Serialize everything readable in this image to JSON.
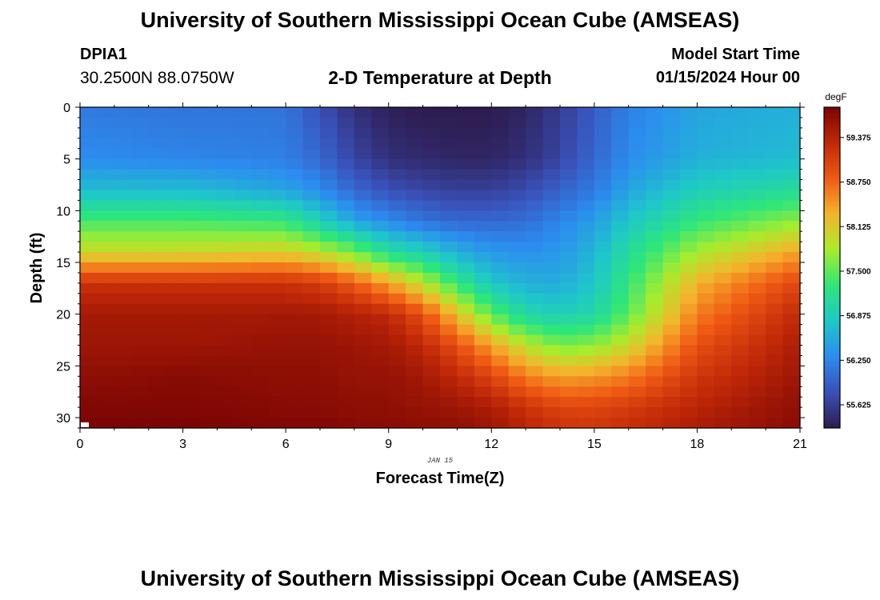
{
  "header": {
    "title": "University of Southern Mississippi Ocean Cube (AMSEAS)",
    "station": "DPIA1",
    "coordinates": "30.2500N  88.0750W",
    "subtitle": "2-D Temperature at Depth",
    "model_start_label": "Model Start Time",
    "model_start_value": "01/15/2024 Hour 00"
  },
  "footer": {
    "title": "University of Southern Mississippi Ocean Cube (AMSEAS)"
  },
  "chart_data": {
    "type": "heatmap",
    "title": "2-D Temperature at Depth",
    "xlabel": "Forecast Time(Z)",
    "ylabel": "Depth (ft)",
    "date_label": "JAN 15",
    "x_ticks": [
      0,
      3,
      6,
      9,
      12,
      15,
      18,
      21
    ],
    "y_ticks": [
      0,
      5,
      10,
      15,
      20,
      25,
      30
    ],
    "xlim": [
      0,
      21
    ],
    "ylim": [
      0,
      31
    ],
    "y_inverted": true,
    "colorbar": {
      "unit": "degF",
      "min": 55.3,
      "max": 59.8,
      "tick_labels": [
        "59.375",
        "58.750",
        "58.125",
        "57.500",
        "56.875",
        "56.250",
        "55.625"
      ],
      "colors": [
        "#2d1b4e",
        "#3a50b8",
        "#2c8cf0",
        "#1ec8c8",
        "#2ee67a",
        "#a8ec2c",
        "#f5b42c",
        "#f05a14",
        "#c02808",
        "#7a0404"
      ]
    },
    "temperature_field": {
      "description": "degF at depth; columns are forecast hours",
      "hours": [
        0,
        3,
        6,
        7,
        8,
        9,
        10,
        11,
        12,
        13,
        14,
        15,
        16,
        18,
        21
      ],
      "depths": [
        0,
        5,
        8,
        11,
        14,
        17,
        20,
        23,
        26,
        29,
        31
      ],
      "values": [
        [
          56.15,
          56.1,
          56.1,
          55.8,
          55.5,
          55.35,
          55.3,
          55.3,
          55.3,
          55.4,
          55.6,
          55.9,
          56.2,
          56.5,
          56.6
        ],
        [
          56.3,
          56.25,
          56.2,
          56.0,
          55.7,
          55.5,
          55.45,
          55.4,
          55.4,
          55.5,
          55.7,
          56.0,
          56.3,
          56.6,
          56.7
        ],
        [
          56.7,
          56.7,
          56.5,
          56.3,
          56.0,
          55.8,
          55.7,
          55.65,
          55.65,
          55.75,
          55.95,
          56.15,
          56.5,
          56.9,
          57.1
        ],
        [
          57.4,
          57.4,
          57.3,
          56.9,
          56.5,
          56.3,
          56.1,
          56.0,
          56.0,
          56.05,
          56.25,
          56.45,
          56.8,
          57.3,
          57.7
        ],
        [
          58.0,
          58.0,
          58.1,
          57.9,
          57.6,
          57.1,
          56.9,
          56.6,
          56.4,
          56.35,
          56.4,
          56.65,
          57.1,
          57.8,
          58.4
        ],
        [
          59.2,
          59.2,
          59.2,
          59.1,
          58.8,
          58.4,
          57.9,
          57.3,
          56.8,
          56.6,
          56.55,
          56.8,
          57.3,
          58.3,
          59.0
        ],
        [
          59.5,
          59.5,
          59.5,
          59.5,
          59.4,
          59.3,
          58.9,
          58.2,
          57.5,
          57.0,
          56.9,
          57.0,
          57.5,
          58.6,
          59.3
        ],
        [
          59.55,
          59.55,
          59.6,
          59.6,
          59.55,
          59.5,
          59.3,
          58.9,
          58.4,
          57.9,
          57.6,
          57.7,
          58.0,
          58.9,
          59.45
        ],
        [
          59.65,
          59.7,
          59.65,
          59.65,
          59.6,
          59.6,
          59.5,
          59.3,
          59.0,
          58.6,
          58.4,
          58.45,
          58.6,
          59.15,
          59.55
        ],
        [
          59.75,
          59.75,
          59.7,
          59.7,
          59.65,
          59.65,
          59.6,
          59.55,
          59.45,
          59.2,
          59.0,
          59.0,
          59.1,
          59.35,
          59.65
        ],
        [
          59.8,
          59.8,
          59.75,
          59.75,
          59.7,
          59.7,
          59.65,
          59.65,
          59.55,
          59.35,
          59.2,
          59.15,
          59.25,
          59.45,
          59.7
        ]
      ]
    }
  }
}
